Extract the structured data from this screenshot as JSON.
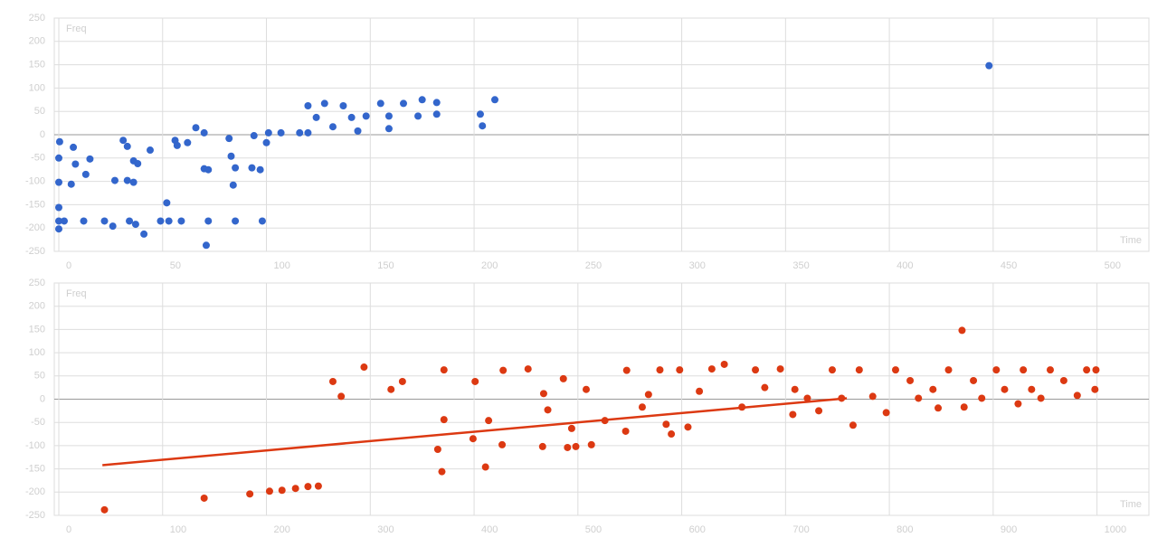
{
  "chart_data": [
    {
      "type": "scatter",
      "y_label": "Freq",
      "x_label": "Time",
      "xlim": [
        0,
        525
      ],
      "xticks": [
        0,
        50,
        100,
        150,
        200,
        250,
        300,
        350,
        400,
        450,
        500
      ],
      "ylim": [
        -250,
        250
      ],
      "yticks": [
        -250,
        -200,
        -150,
        -100,
        -50,
        0,
        50,
        100,
        150,
        200,
        250
      ],
      "grid": true,
      "series": [
        {
          "color": "#3366cc",
          "x": [
            0.4,
            0,
            0,
            0,
            2.6,
            0,
            0,
            7,
            8,
            6,
            13,
            15,
            12,
            22,
            26,
            27,
            33,
            36,
            31,
            33,
            36,
            38,
            34,
            37,
            41,
            44,
            49,
            52,
            53,
            59,
            56,
            57,
            62,
            66,
            70,
            70,
            72,
            72,
            71,
            82,
            83,
            84,
            85,
            85,
            93,
            97,
            98,
            94,
            100,
            101,
            107,
            116,
            120,
            120,
            124,
            128,
            132,
            137,
            141,
            144,
            148,
            155,
            159,
            159,
            166,
            173,
            175,
            182,
            182,
            203,
            204,
            210,
            448
          ],
          "y": [
            -15,
            -50,
            -102,
            -185,
            -185,
            -202,
            -156,
            -27,
            -63,
            -106,
            -85,
            -52,
            -185,
            -185,
            -196,
            -98,
            -98,
            -102,
            -12,
            -25,
            -56,
            -62,
            -185,
            -192,
            -213,
            -33,
            -185,
            -146,
            -185,
            -185,
            -12,
            -23,
            -17,
            15,
            4,
            -73,
            -75,
            -185,
            -237,
            -8,
            -46,
            -108,
            -71,
            -185,
            -71,
            -75,
            -185,
            -2,
            -17,
            4,
            4,
            4,
            4,
            62,
            37,
            67,
            17,
            62,
            37,
            8,
            40,
            67,
            40,
            13,
            67,
            40,
            75,
            69,
            44,
            44,
            19,
            75,
            148
          ]
        }
      ]
    },
    {
      "type": "scatter",
      "y_label": "Freq",
      "x_label": "Time",
      "xlim": [
        0,
        1050
      ],
      "xticks": [
        0,
        100,
        200,
        300,
        400,
        500,
        600,
        700,
        800,
        900,
        1000
      ],
      "ylim": [
        -250,
        250
      ],
      "yticks": [
        -250,
        -200,
        -150,
        -100,
        -50,
        0,
        50,
        100,
        150,
        200,
        250
      ],
      "grid": true,
      "series": [
        {
          "color": "#dc3912",
          "x": [
            44,
            140,
            184,
            203,
            215,
            228,
            240,
            250,
            264,
            272,
            294,
            320,
            331,
            365,
            369,
            371,
            371,
            399,
            401,
            411,
            414,
            427,
            428,
            452,
            466,
            467,
            471,
            486,
            490,
            494,
            498,
            508,
            513,
            526,
            547,
            546,
            562,
            568,
            579,
            585,
            590,
            598,
            606,
            617,
            629,
            641,
            658,
            671,
            680,
            695,
            707,
            709,
            721,
            732,
            745,
            754,
            765,
            771,
            784,
            797,
            806,
            820,
            828,
            842,
            847,
            857,
            870,
            872,
            881,
            889,
            903,
            911,
            924,
            929,
            937,
            946,
            955,
            968,
            981,
            990,
            999,
            998
          ],
          "y": [
            -238,
            -213,
            -204,
            -198,
            -196,
            -192,
            -188,
            -187,
            38,
            6,
            69,
            21,
            38,
            -108,
            -156,
            -44,
            63,
            -85,
            38,
            -146,
            -46,
            -98,
            62,
            65,
            -102,
            12,
            -23,
            44,
            -104,
            -63,
            -102,
            21,
            -98,
            -46,
            62,
            -69,
            -17,
            10,
            63,
            -54,
            -75,
            63,
            -60,
            17,
            65,
            75,
            -17,
            63,
            25,
            65,
            -33,
            21,
            2,
            -25,
            63,
            2,
            -56,
            63,
            6,
            -29,
            63,
            40,
            2,
            21,
            -19,
            63,
            148,
            -17,
            40,
            2,
            63,
            21,
            -10,
            63,
            21,
            2,
            63,
            40,
            8,
            63,
            63,
            21
          ]
        }
      ],
      "trendline": {
        "color": "#dc3912",
        "x": [
          42,
          759
        ],
        "y": [
          -142,
          2
        ]
      }
    }
  ]
}
